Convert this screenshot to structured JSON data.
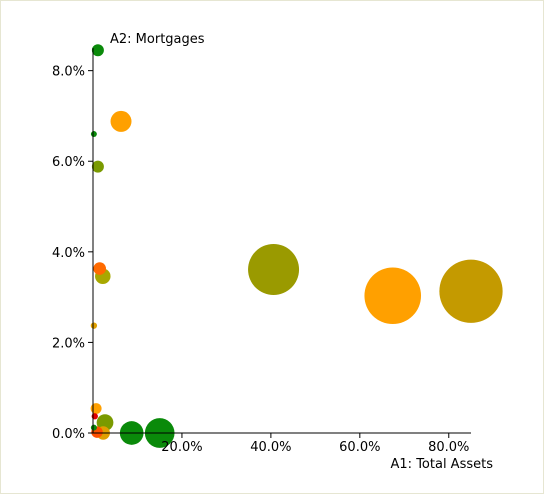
{
  "chart_data": {
    "type": "scatter",
    "xlabel": "A1: Total Assets",
    "ylabel": "A2: Mortgages",
    "xlim": [
      0,
      85
    ],
    "ylim": [
      0,
      8.5
    ],
    "x_ticks": [
      {
        "value": 20,
        "label": "20.0%"
      },
      {
        "value": 40,
        "label": "40.0%"
      },
      {
        "value": 60,
        "label": "60.0%"
      },
      {
        "value": 80,
        "label": "80.0%"
      }
    ],
    "y_ticks": [
      {
        "value": 0,
        "label": "0.0%"
      },
      {
        "value": 2,
        "label": "2.0%"
      },
      {
        "value": 4,
        "label": "4.0%"
      },
      {
        "value": 6,
        "label": "6.0%"
      },
      {
        "value": 8,
        "label": "8.0%"
      }
    ],
    "grid": false,
    "points": [
      {
        "x": 85.0,
        "y": 3.13,
        "size": 10.0,
        "color": "#c49a00"
      },
      {
        "x": 67.4,
        "y": 3.03,
        "size": 8.0,
        "color": "#ffa000"
      },
      {
        "x": 40.6,
        "y": 3.61,
        "size": 6.5,
        "color": "#9a9a00"
      },
      {
        "x": 15.0,
        "y": 0.0,
        "size": 2.2,
        "color": "#0a8a0a"
      },
      {
        "x": 8.7,
        "y": 0.0,
        "size": 1.4,
        "color": "#0a8a0a"
      },
      {
        "x": 6.3,
        "y": 6.88,
        "size": 1.1,
        "color": "#ffa000"
      },
      {
        "x": 1.1,
        "y": 8.45,
        "size": 0.36,
        "color": "#0a8a0a"
      },
      {
        "x": 1.1,
        "y": 5.88,
        "size": 0.36,
        "color": "#7a9a00"
      },
      {
        "x": 2.2,
        "y": 3.46,
        "size": 0.6,
        "color": "#a8a800"
      },
      {
        "x": 1.5,
        "y": 3.63,
        "size": 0.4,
        "color": "#ff6a00"
      },
      {
        "x": 2.7,
        "y": 0.23,
        "size": 0.7,
        "color": "#7a9a00"
      },
      {
        "x": 2.3,
        "y": 0.0,
        "size": 0.45,
        "color": "#e0a000"
      },
      {
        "x": 0.7,
        "y": 0.54,
        "size": 0.3,
        "color": "#ffa000"
      },
      {
        "x": 0.9,
        "y": 0.02,
        "size": 0.33,
        "color": "#ff5000"
      },
      {
        "x": 0.4,
        "y": 0.37,
        "size": 0.1,
        "color": "#e00000"
      },
      {
        "x": 0.2,
        "y": 0.12,
        "size": 0.07,
        "color": "#0a8a0a"
      },
      {
        "x": 0.2,
        "y": 6.6,
        "size": 0.07,
        "color": "#0a8a0a"
      },
      {
        "x": 0.2,
        "y": 2.37,
        "size": 0.1,
        "color": "#e0a000"
      }
    ]
  }
}
